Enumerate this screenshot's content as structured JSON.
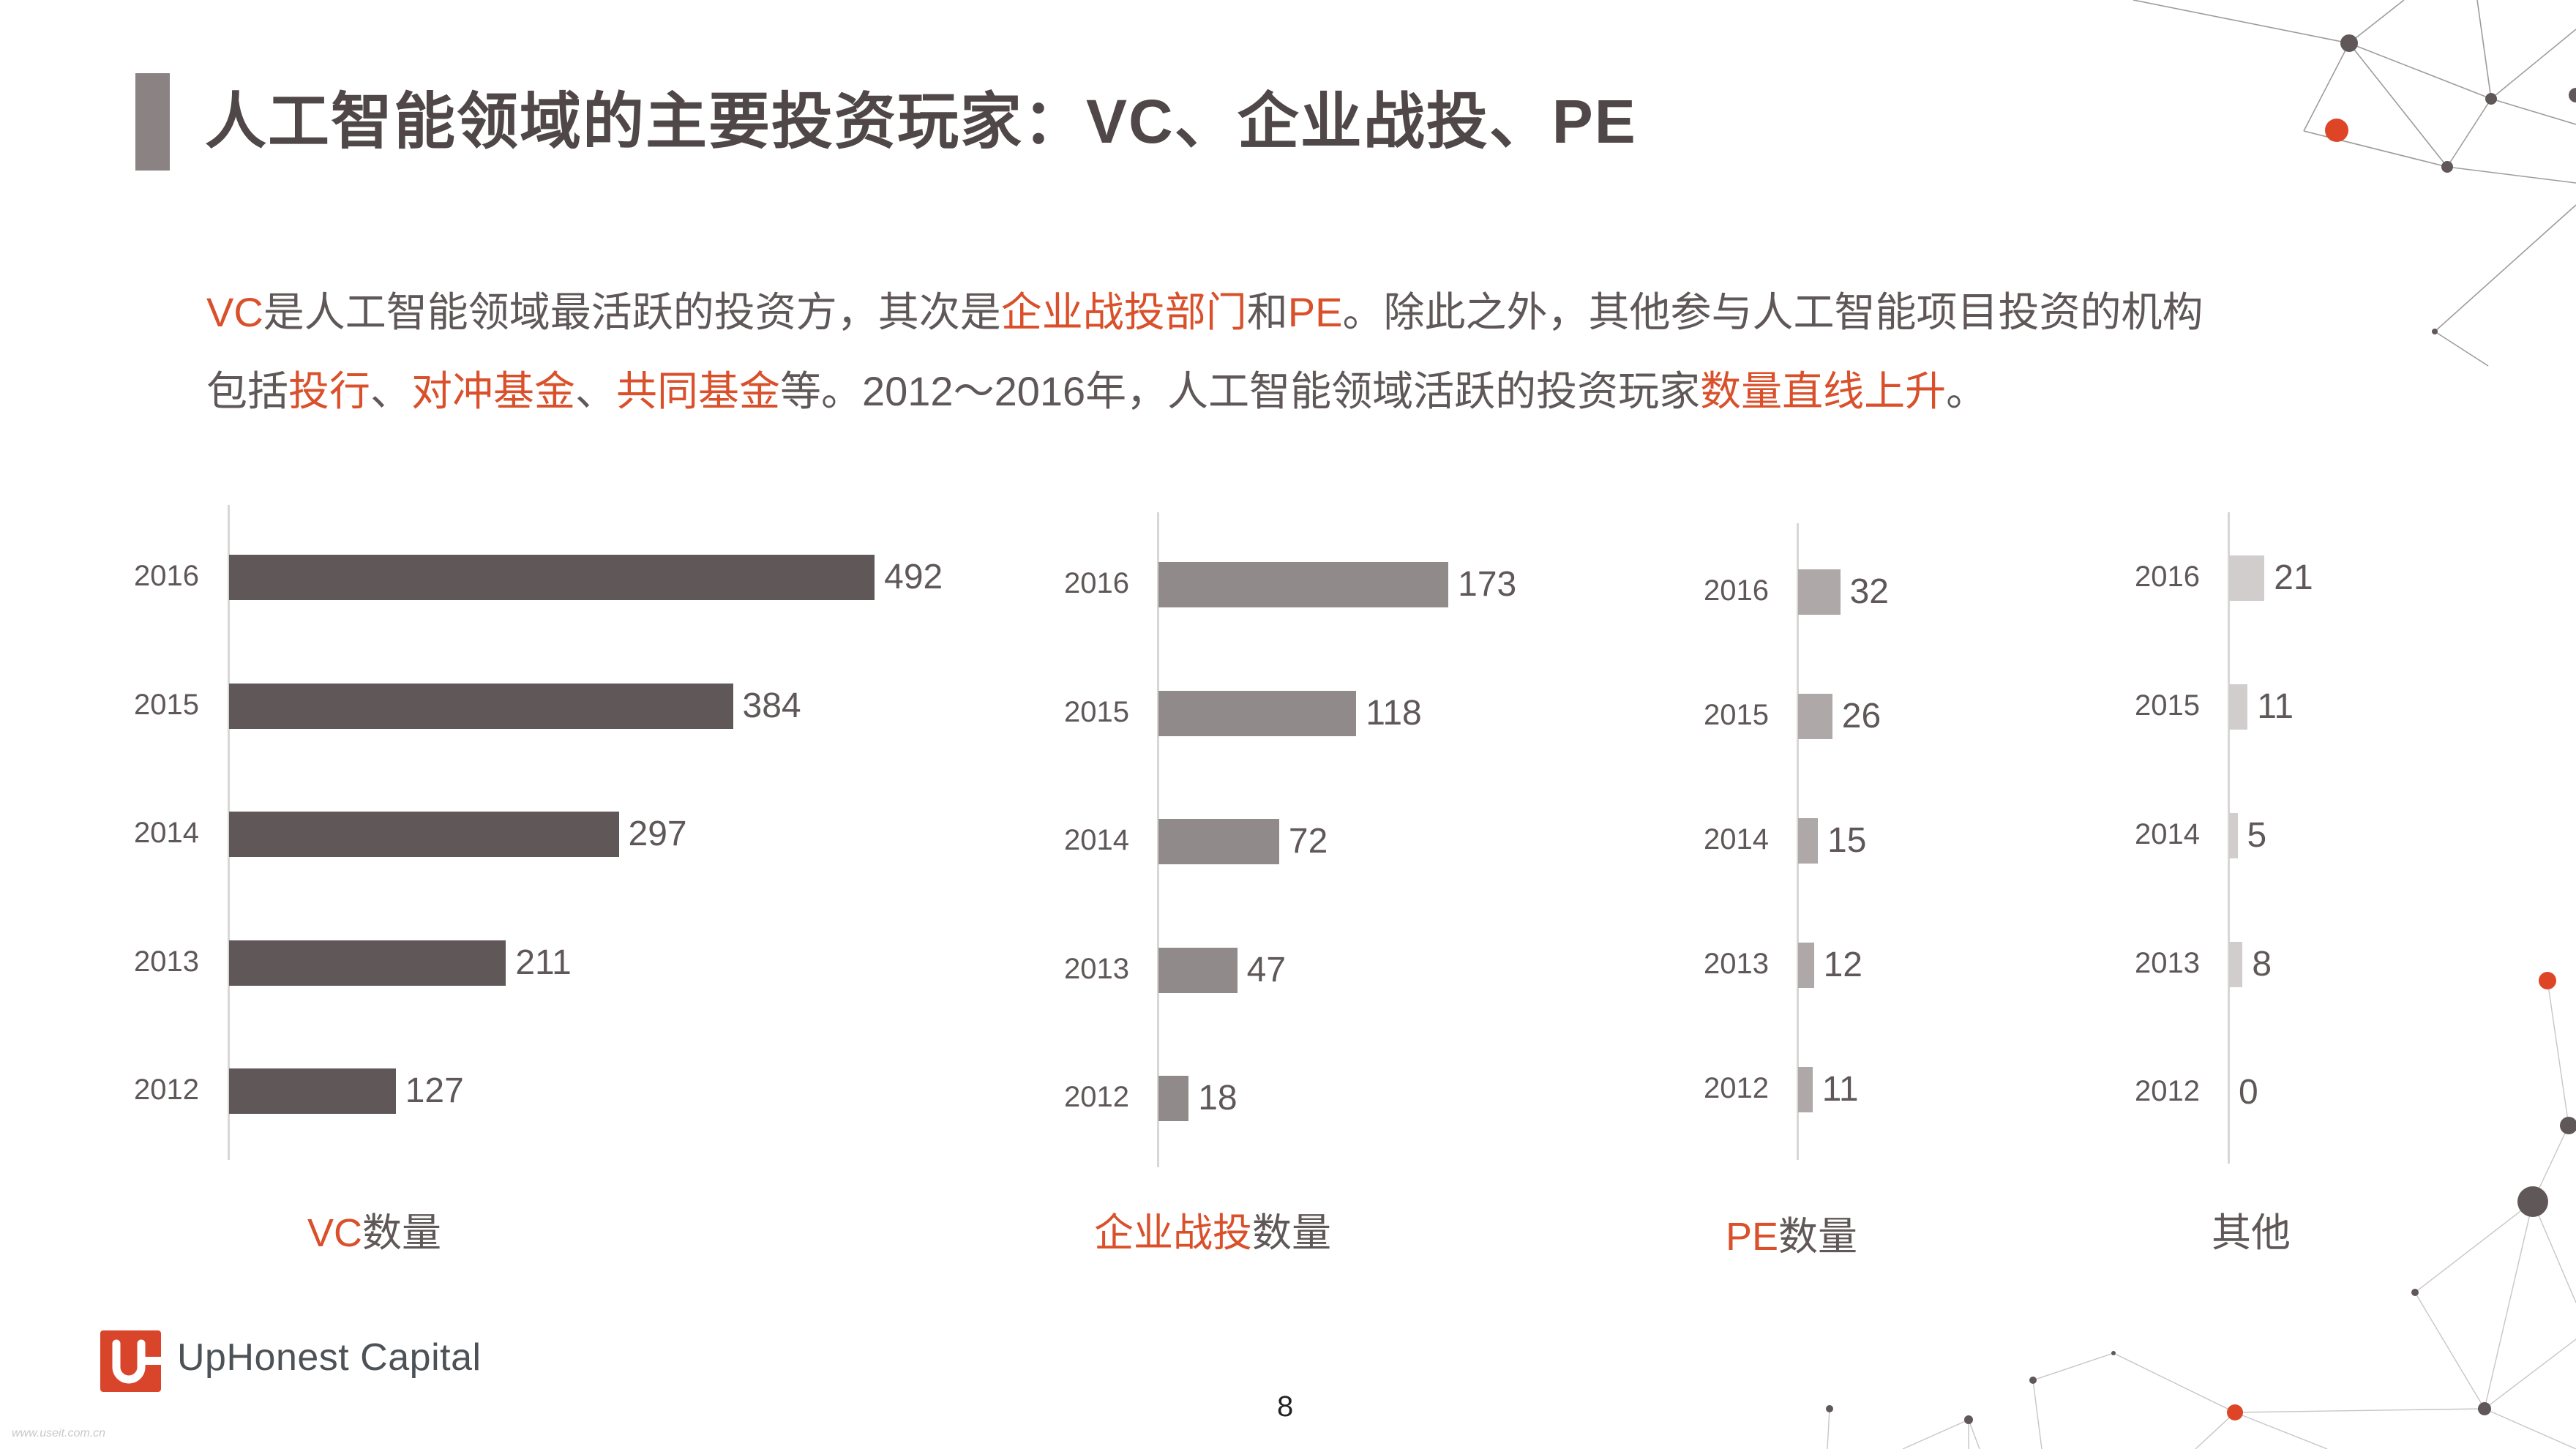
{
  "slide": {
    "title": "人工智能领域的主要投资玩家：VC、企业战投、PE",
    "paragraph": {
      "line1": [
        {
          "text": "VC",
          "highlight": true
        },
        {
          "text": "是人工智能领域最活跃的投资方，其次是",
          "highlight": false
        },
        {
          "text": "企业战投部门",
          "highlight": true
        },
        {
          "text": "和",
          "highlight": false
        },
        {
          "text": "PE",
          "highlight": true
        },
        {
          "text": "。除此之外，其他参与人工智能项目投资的机构",
          "highlight": false
        }
      ],
      "line2": [
        {
          "text": "包括",
          "highlight": false
        },
        {
          "text": "投行",
          "highlight": true
        },
        {
          "text": "、",
          "highlight": false
        },
        {
          "text": "对冲基金",
          "highlight": true
        },
        {
          "text": "、",
          "highlight": false
        },
        {
          "text": "共同基金",
          "highlight": true
        },
        {
          "text": "等。2012～2016年，人工智能领域活跃的投资玩家",
          "highlight": false
        },
        {
          "text": "数量直线上升",
          "highlight": true
        },
        {
          "text": "。",
          "highlight": false
        }
      ]
    },
    "page_number": "8",
    "logo": {
      "mark": "U",
      "name": "UpHonest Capital"
    },
    "watermark": "www.useit.com.cn"
  },
  "colors": {
    "accent": "#d9502b",
    "text": "#5f5758",
    "title": "#4f4748",
    "title_bar": "#8a8283",
    "vc_bar": "#605758",
    "corp_bar": "#918a8a",
    "pe_bar": "#aea8a8",
    "other_bar": "#d2cdcd",
    "axis": "#d9d6d6"
  },
  "chart_data": [
    {
      "type": "bar",
      "orientation": "horizontal",
      "title": "VC数量",
      "title_parts": [
        {
          "text": "VC",
          "highlight": true
        },
        {
          "text": "数量",
          "highlight": false
        }
      ],
      "categories": [
        "2016",
        "2015",
        "2014",
        "2013",
        "2012"
      ],
      "values": [
        492,
        384,
        297,
        211,
        127
      ],
      "xlabel": "",
      "ylabel": "",
      "grid": false,
      "data_labels": true
    },
    {
      "type": "bar",
      "orientation": "horizontal",
      "title": "企业战投数量",
      "title_parts": [
        {
          "text": "企业战投",
          "highlight": true
        },
        {
          "text": "数量",
          "highlight": false
        }
      ],
      "categories": [
        "2016",
        "2015",
        "2014",
        "2013",
        "2012"
      ],
      "values": [
        173,
        118,
        72,
        47,
        18
      ],
      "xlabel": "",
      "ylabel": "",
      "grid": false,
      "data_labels": true
    },
    {
      "type": "bar",
      "orientation": "horizontal",
      "title": "PE数量",
      "title_parts": [
        {
          "text": "PE",
          "highlight": true
        },
        {
          "text": "数量",
          "highlight": false
        }
      ],
      "categories": [
        "2016",
        "2015",
        "2014",
        "2013",
        "2012"
      ],
      "values": [
        32,
        26,
        15,
        12,
        11
      ],
      "xlabel": "",
      "ylabel": "",
      "grid": false,
      "data_labels": true
    },
    {
      "type": "bar",
      "orientation": "horizontal",
      "title": "其他",
      "title_parts": [
        {
          "text": "其他",
          "highlight": false
        }
      ],
      "categories": [
        "2016",
        "2015",
        "2014",
        "2013",
        "2012"
      ],
      "values": [
        21,
        11,
        5,
        8,
        0
      ],
      "xlabel": "",
      "ylabel": "",
      "grid": false,
      "data_labels": true
    }
  ]
}
